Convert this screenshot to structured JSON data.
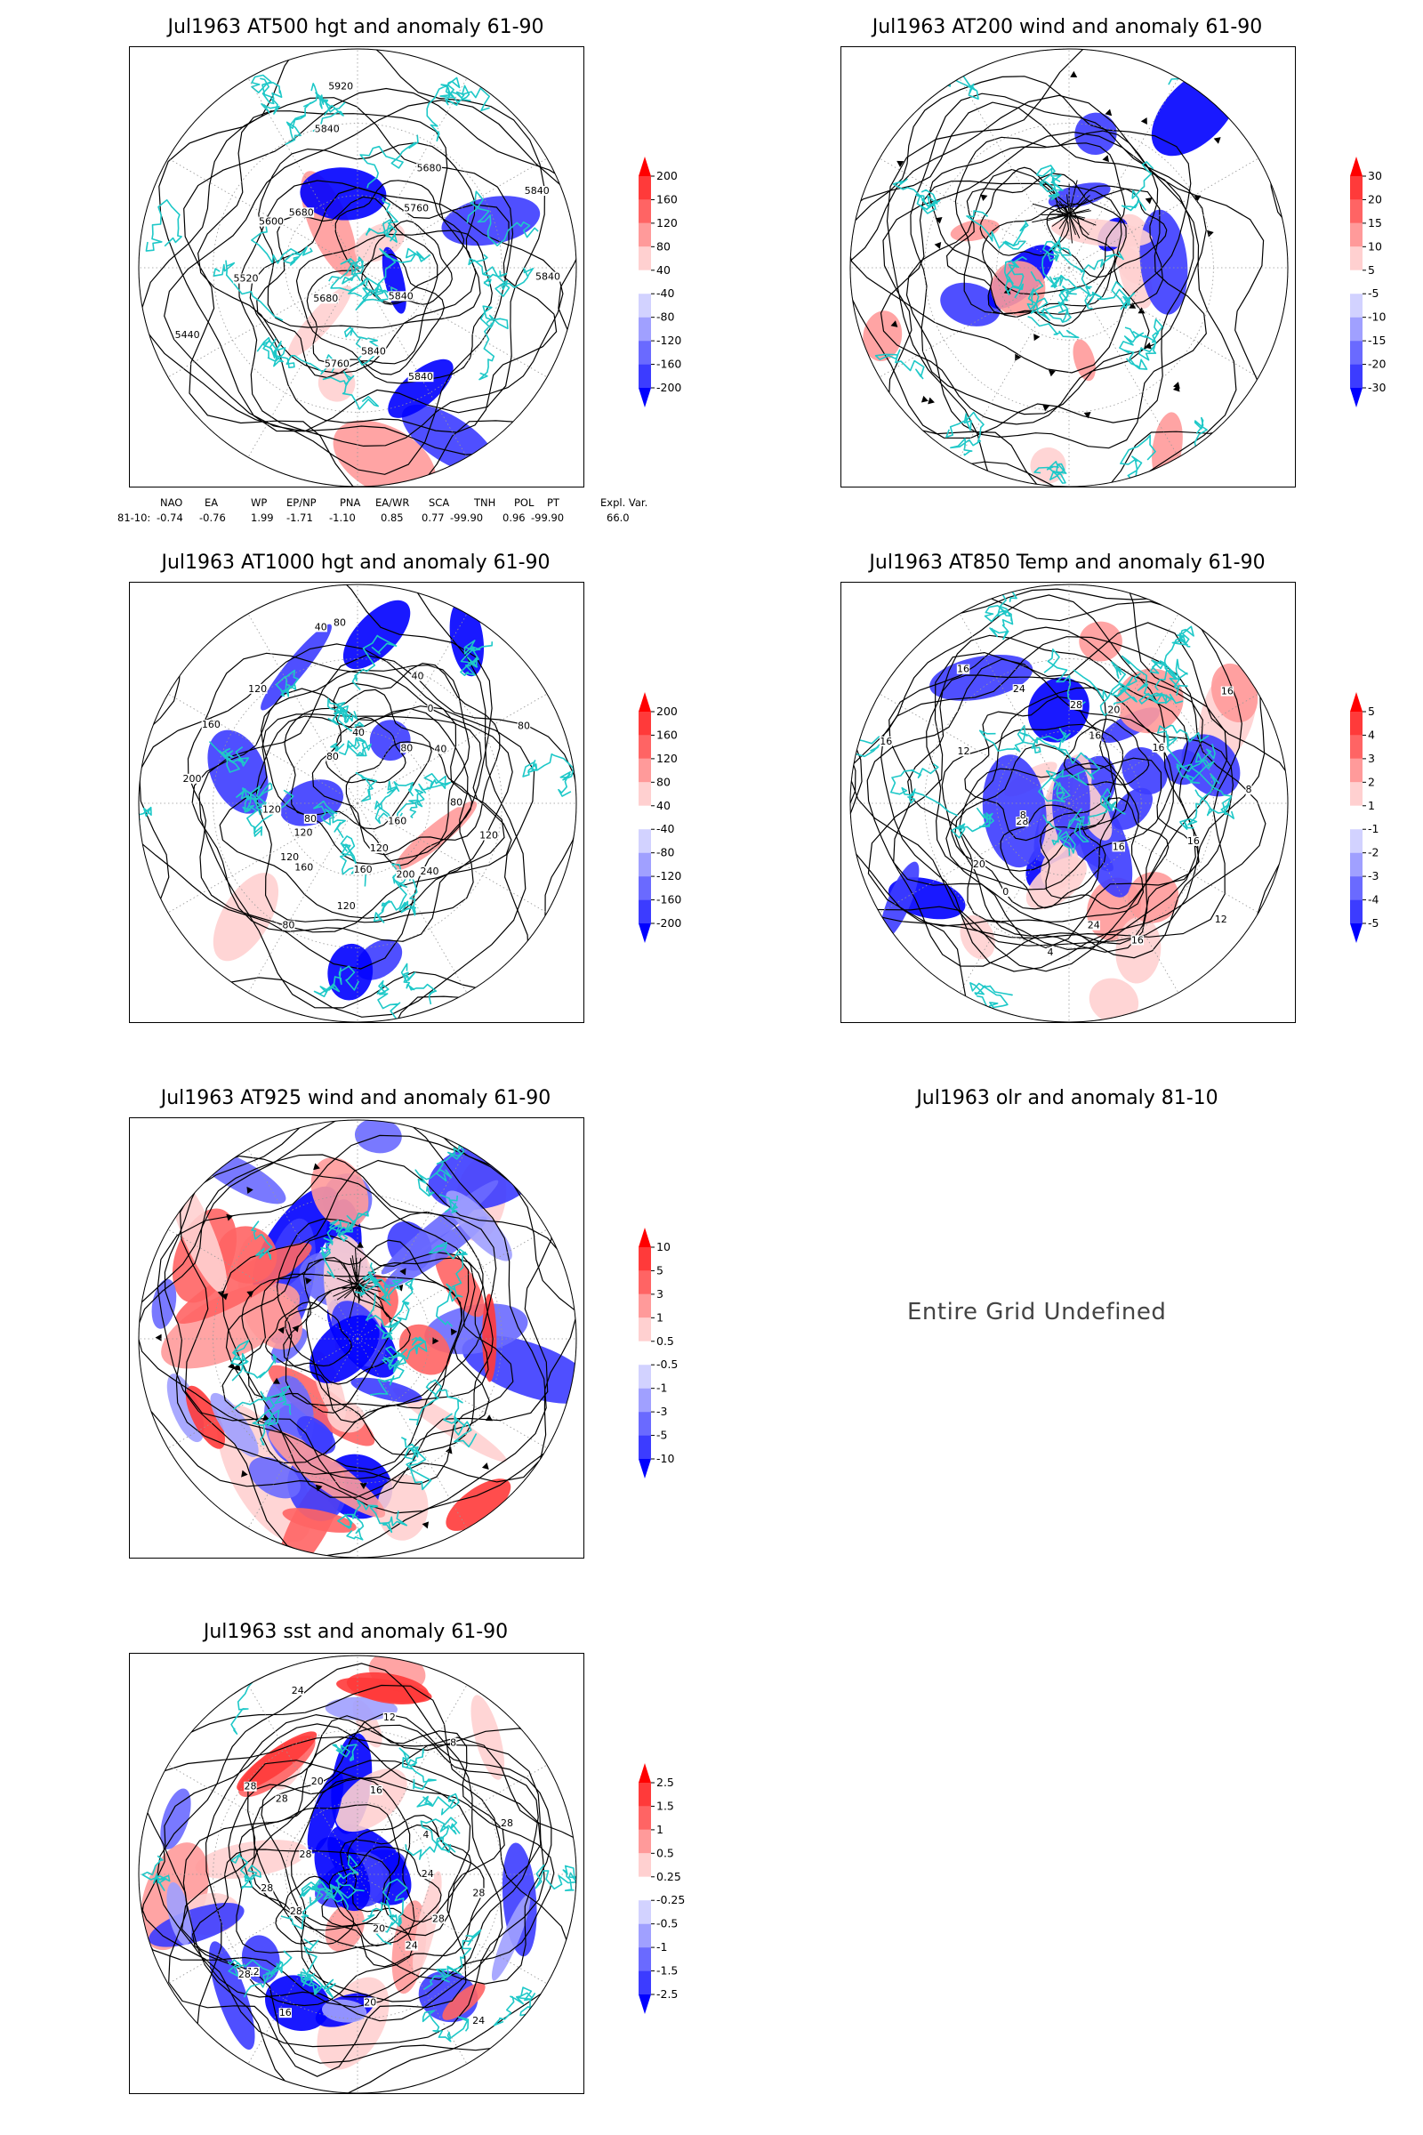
{
  "panels": {
    "at500": {
      "title": "Jul1963 AT500 hgt and anomaly 61-90",
      "contour_labels": [
        "5840",
        "5840",
        "5840",
        "5840",
        "5760",
        "5680",
        "5440",
        "5520",
        "5600",
        "5680",
        "5840",
        "5920",
        "5680",
        "5760",
        "5840"
      ],
      "colorbar": [
        "200",
        "160",
        "120",
        "80",
        "40",
        "-40",
        "-80",
        "-120",
        "-160",
        "-200"
      ]
    },
    "at200": {
      "title": "Jul1963 AT200 wind and anomaly 61-90",
      "colorbar": [
        "30",
        "20",
        "15",
        "10",
        "5",
        "-5",
        "-10",
        "-15",
        "-20",
        "-30"
      ]
    },
    "at1000": {
      "title": "Jul1963 AT1000 hgt and anomaly 61-90",
      "contour_labels": [
        "120",
        "160",
        "240",
        "200",
        "120",
        "160",
        "120",
        "80",
        "160",
        "120",
        "120",
        "80",
        "120",
        "200",
        "160",
        "120",
        "80",
        "40",
        "80",
        "40",
        "40",
        "80",
        "0",
        "40",
        "80",
        "80"
      ],
      "colorbar": [
        "200",
        "160",
        "120",
        "80",
        "40",
        "-40",
        "-80",
        "-120",
        "-160",
        "-200"
      ]
    },
    "at850": {
      "title": "Jul1963 AT850 Temp and anomaly 61-90",
      "contour_labels": [
        "16",
        "12",
        "16",
        "16",
        "24",
        "4",
        "0",
        "20",
        "28",
        "8",
        "16",
        "12",
        "16",
        "24",
        "28",
        "16",
        "20",
        "16",
        "16",
        "8"
      ],
      "colorbar": [
        "5",
        "4",
        "3",
        "2",
        "1",
        "-1",
        "-2",
        "-3",
        "-4",
        "-5"
      ]
    },
    "at925": {
      "title": "Jul1963 AT925 wind and anomaly 61-90",
      "colorbar": [
        "10",
        "5",
        "3",
        "1",
        "0.5",
        "-0.5",
        "-1",
        "-3",
        "-5",
        "-10"
      ]
    },
    "olr": {
      "title": "Jul1963 olr and anomaly 81-10",
      "message": "Entire Grid Undefined"
    },
    "sst": {
      "title": "Jul1963 sst and anomaly 61-90",
      "contour_labels": [
        "28",
        "28",
        "24",
        "24",
        "20",
        "20",
        "16",
        "12",
        "28",
        "28",
        "28",
        "28",
        "28",
        "28",
        "24",
        "20",
        "16",
        "12",
        "8",
        "4",
        "28",
        "24"
      ],
      "colorbar": [
        "2.5",
        "1.5",
        "1",
        "0.5",
        "0.25",
        "-0.25",
        "-0.5",
        "-1",
        "-1.5",
        "-2.5"
      ]
    }
  },
  "teleconnections": {
    "headers": [
      "NAO",
      "EA",
      "WP",
      "EP/NP",
      "PNA",
      "EA/WR",
      "SCA",
      "TNH",
      "POL",
      "PT",
      "Expl. Var."
    ],
    "row_label": "81-10:",
    "values": [
      "-0.74",
      "-0.76",
      "1.99",
      "-1.71",
      "-1.10",
      "0.85",
      "0.77",
      "-99.90",
      "0.96",
      "-99.90",
      "66.0"
    ]
  },
  "colors": {
    "contour": "#000000",
    "coast": "#1ec8c8",
    "positive": [
      "#ff0000",
      "#ff3a3a",
      "#ff6464",
      "#ff9a9a",
      "#ffd0d0"
    ],
    "negative": [
      "#d2d2ff",
      "#a0a0ff",
      "#6a6aff",
      "#3c3cff",
      "#0000ff"
    ]
  }
}
